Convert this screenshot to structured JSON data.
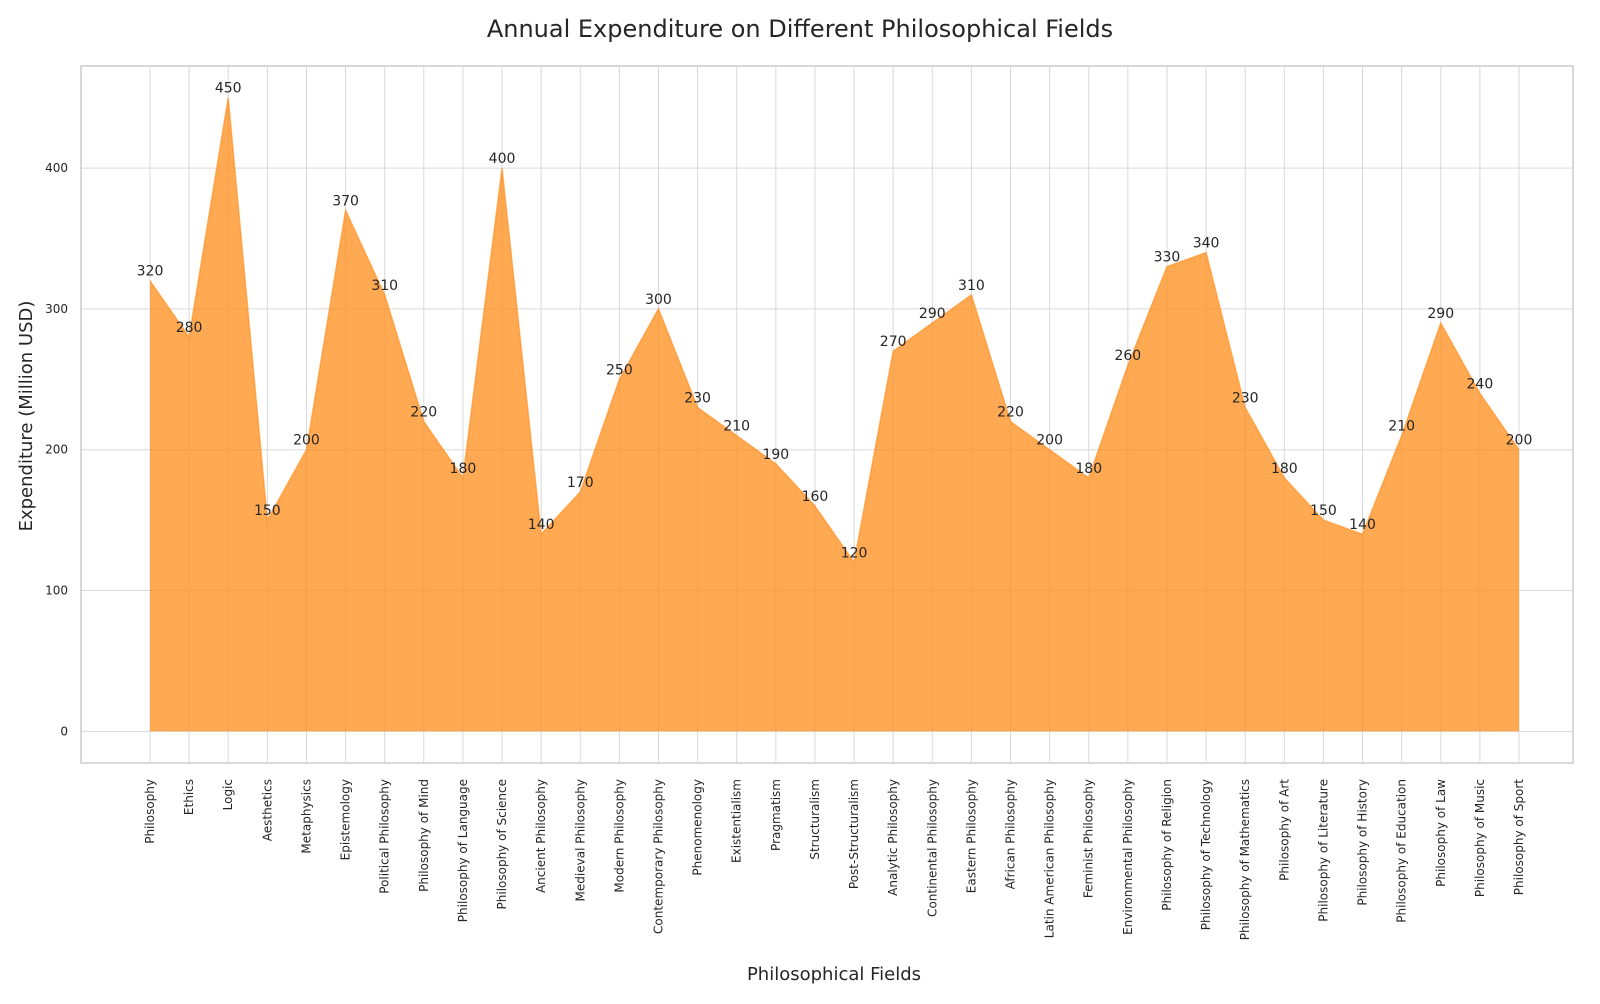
{
  "chart_data": {
    "type": "area",
    "title": "Annual Expenditure on Different Philosophical Fields",
    "xlabel": "Philosophical Fields",
    "ylabel": "Expenditure (Million USD)",
    "ylim": [
      -22.5,
      472.5
    ],
    "yticks": [
      0,
      100,
      200,
      300,
      400
    ],
    "grid": true,
    "fill_color": "#FF8C1A",
    "fill_opacity": 0.75,
    "categories": [
      "Philosophy",
      "Ethics",
      "Logic",
      "Aesthetics",
      "Metaphysics",
      "Epistemology",
      "Political Philosophy",
      "Philosophy of Mind",
      "Philosophy of Language",
      "Philosophy of Science",
      "Ancient Philosophy",
      "Medieval Philosophy",
      "Modern Philosophy",
      "Contemporary Philosophy",
      "Phenomenology",
      "Existentialism",
      "Pragmatism",
      "Structuralism",
      "Post-Structuralism",
      "Analytic Philosophy",
      "Continental Philosophy",
      "Eastern Philosophy",
      "African Philosophy",
      "Latin American Philosophy",
      "Feminist Philosophy",
      "Environmental Philosophy",
      "Philosophy of Religion",
      "Philosophy of Technology",
      "Philosophy of Mathematics",
      "Philosophy of Art",
      "Philosophy of Literature",
      "Philosophy of History",
      "Philosophy of Education",
      "Philosophy of Law",
      "Philosophy of Music",
      "Philosophy of Sport"
    ],
    "values": [
      320,
      280,
      450,
      150,
      200,
      370,
      310,
      220,
      180,
      400,
      140,
      170,
      250,
      300,
      230,
      210,
      190,
      160,
      120,
      270,
      290,
      310,
      220,
      200,
      180,
      260,
      330,
      340,
      230,
      180,
      150,
      140,
      210,
      290,
      240,
      200
    ]
  }
}
